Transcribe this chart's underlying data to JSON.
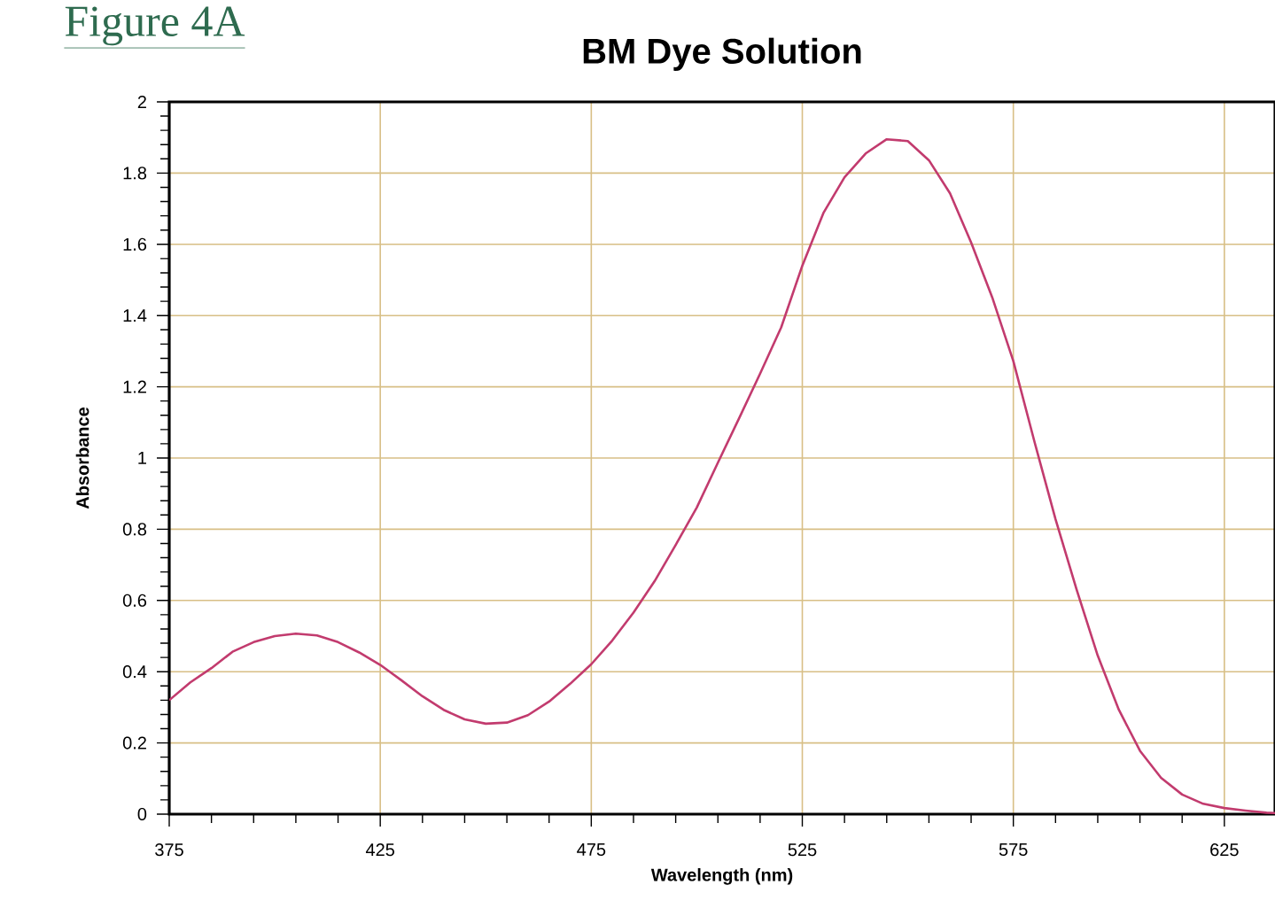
{
  "chart_data": {
    "type": "line",
    "title": "BM Dye Solution",
    "xlabel": "Wavelength (nm)",
    "ylabel": "Absorbance",
    "annotations": [
      "Figure 4A"
    ],
    "x": [
      375,
      380,
      385,
      390,
      395,
      400,
      405,
      410,
      415,
      420,
      425,
      430,
      435,
      440,
      445,
      450,
      455,
      460,
      465,
      470,
      475,
      480,
      485,
      490,
      495,
      500,
      505,
      510,
      515,
      520,
      525,
      530,
      535,
      540,
      545,
      550,
      555,
      560,
      565,
      570,
      575,
      580,
      585,
      590,
      595,
      600,
      605,
      610,
      615,
      620,
      625,
      630,
      635,
      637
    ],
    "series": [
      {
        "color": "#c23b6e",
        "values": [
          0.32,
          0.37,
          0.41,
          0.456,
          0.483,
          0.5,
          0.507,
          0.502,
          0.483,
          0.454,
          0.419,
          0.376,
          0.331,
          0.293,
          0.266,
          0.254,
          0.257,
          0.278,
          0.316,
          0.366,
          0.421,
          0.488,
          0.566,
          0.654,
          0.756,
          0.861,
          0.987,
          1.111,
          1.237,
          1.367,
          1.54,
          1.688,
          1.788,
          1.855,
          1.895,
          1.89,
          1.836,
          1.743,
          1.605,
          1.451,
          1.272,
          1.046,
          0.828,
          0.63,
          0.445,
          0.293,
          0.178,
          0.102,
          0.055,
          0.029,
          0.017,
          0.01,
          0.004,
          0.003
        ]
      }
    ],
    "xlim": [
      375,
      637
    ],
    "ylim": [
      0,
      2
    ],
    "xticks": [
      375,
      425,
      475,
      525,
      575,
      625
    ],
    "yticks": [
      0,
      0.2,
      0.4,
      0.6,
      0.8,
      1,
      1.2,
      1.4,
      1.6,
      1.8,
      2
    ],
    "grid": true,
    "marker": "none",
    "line_style": "solid"
  }
}
